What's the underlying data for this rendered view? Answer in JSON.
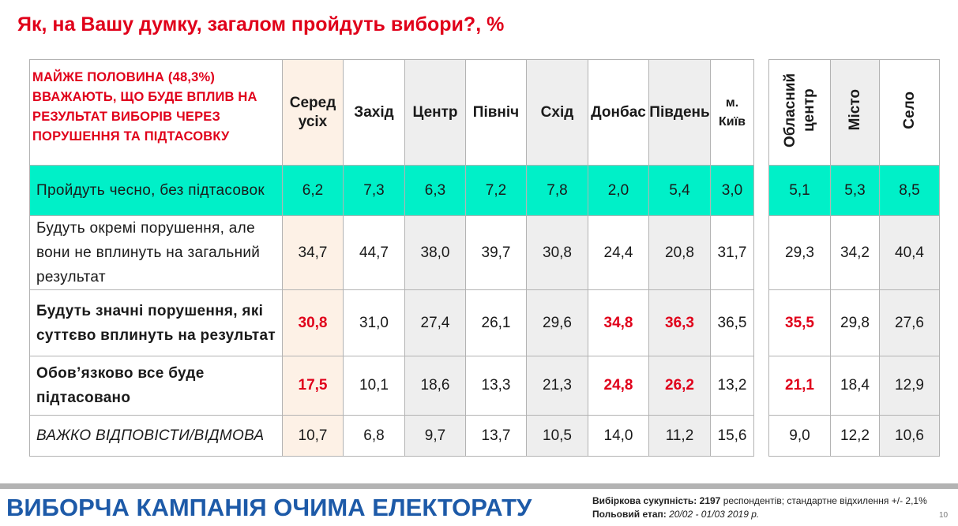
{
  "title": "Як, на Вашу думку, загалом пройдуть вибори?, %",
  "table": {
    "question_title": "МАЙЖЕ ПОЛОВИНА (48,3%) ВВАЖАЮТЬ, ЩО БУДЕ ВПЛИВ НА РЕЗУЛЬТАТ ВИБОРІВ ЧЕРЕЗ ПОРУШЕННЯ ТА ПІДТАСОВКУ",
    "col_avg": "Серед усіх",
    "col_west": "Захід",
    "col_center": "Центр",
    "col_north": "Північ",
    "col_east": "Схід",
    "col_donbas": "Донбас",
    "col_south": "Південь",
    "col_kyiv": "м. Київ",
    "col_oblcenter": "Обласний центр",
    "col_city": "Місто",
    "col_village": "Село"
  },
  "chart_data": {
    "type": "table",
    "title": "Як, на Вашу думку, загалом пройдуть вибори?, %",
    "columns": [
      "Серед усіх",
      "Захід",
      "Центр",
      "Північ",
      "Схід",
      "Донбас",
      "Південь",
      "м. Київ",
      "Обласний центр",
      "Місто",
      "Село"
    ],
    "rows": [
      {
        "label": "Пройдуть чесно, без підтасовок",
        "values": [
          "6,2",
          "7,3",
          "6,3",
          "7,2",
          "7,8",
          "2,0",
          "5,4",
          "3,0",
          "5,1",
          "5,3",
          "8,5"
        ],
        "highlight": []
      },
      {
        "label": "Будуть окремі порушення, але вони не вплинуть на загальний результат",
        "values": [
          "34,7",
          "44,7",
          "38,0",
          "39,7",
          "30,8",
          "24,4",
          "20,8",
          "31,7",
          "29,3",
          "34,2",
          "40,4"
        ],
        "highlight": []
      },
      {
        "label": "Будуть значні порушення, які суттєво вплинуть на результат",
        "values": [
          "30,8",
          "31,0",
          "27,4",
          "26,1",
          "29,6",
          "34,8",
          "36,3",
          "36,5",
          "35,5",
          "29,8",
          "27,6"
        ],
        "highlight": [
          0,
          5,
          6,
          8
        ]
      },
      {
        "label": "Обов’язково все буде підтасовано",
        "values": [
          "17,5",
          "10,1",
          "18,6",
          "13,3",
          "21,3",
          "24,8",
          "26,2",
          "13,2",
          "21,1",
          "18,4",
          "12,9"
        ],
        "highlight": [
          0,
          5,
          6,
          8
        ]
      },
      {
        "label": "ВАЖКО  ВІДПОВІСТИ/ВІДМОВА",
        "values": [
          "10,7",
          "6,8",
          "9,7",
          "13,7",
          "10,5",
          "14,0",
          "11,2",
          "15,6",
          "9,0",
          "12,2",
          "10,6"
        ],
        "highlight": []
      }
    ]
  },
  "footer": {
    "banner": "ВИБОРЧА КАМПАНІЯ ОЧИМА ЕЛЕКТОРАТУ",
    "sample_label": "Вибіркова сукупність:",
    "sample_value": "2197",
    "sample_rest": "респондентів; стандартне  відхилення +/- 2,1%",
    "stage_label": "Польовий етап:",
    "stage_value": "20/02 - 01/03 2019 р.",
    "page_number": "10"
  },
  "colors": {
    "title_red": "#e0001a",
    "banner_blue": "#1d5aa8",
    "teal_row": "#00f0c8",
    "avg_column": "#fdf1e6",
    "shaded_column": "#eeeeee"
  }
}
